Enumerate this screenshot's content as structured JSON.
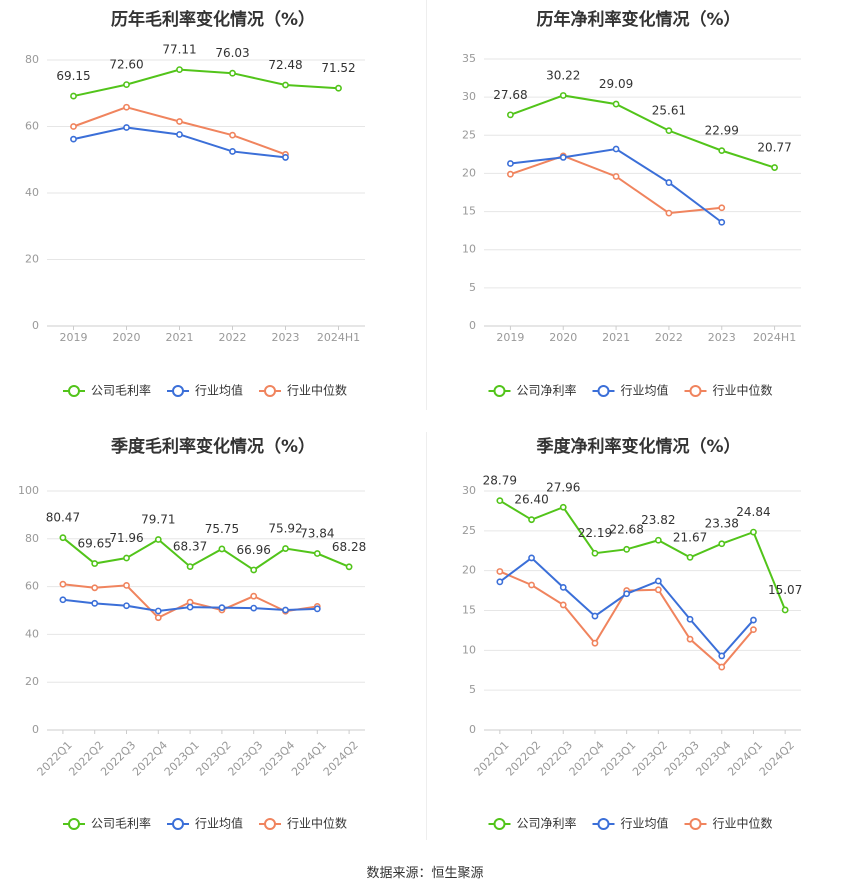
{
  "colors": {
    "company": "#52c41a",
    "industry_avg": "#3b6fd8",
    "industry_median": "#f0845e",
    "grid": "#e6e6e6",
    "axis_text": "#999999",
    "title": "#333333",
    "label": "#333333"
  },
  "legend": {
    "gross": [
      "公司毛利率",
      "行业均值",
      "行业中位数"
    ],
    "net": [
      "公司净利率",
      "行业均值",
      "行业中位数"
    ]
  },
  "source_text": "数据来源：恒生聚源",
  "chart_data": [
    {
      "type": "line",
      "title": "历年毛利率变化情况（%）",
      "categories": [
        "2019",
        "2020",
        "2021",
        "2022",
        "2023",
        "2024H1"
      ],
      "ylim": [
        0,
        80
      ],
      "yticks": [
        0,
        20,
        40,
        60,
        80
      ],
      "grid": true,
      "legend_position": "bottom",
      "series": [
        {
          "name": "公司毛利率",
          "values": [
            69.15,
            72.6,
            77.11,
            76.03,
            72.48,
            71.52
          ],
          "labels": [
            "69.15",
            "72.60",
            "77.11",
            "76.03",
            "72.48",
            "71.52"
          ]
        },
        {
          "name": "行业均值",
          "values": [
            56.2,
            59.7,
            57.6,
            52.5,
            50.7,
            null
          ]
        },
        {
          "name": "行业中位数",
          "values": [
            60.0,
            65.8,
            61.5,
            57.4,
            51.6,
            null
          ]
        }
      ]
    },
    {
      "type": "line",
      "title": "历年净利率变化情况（%）",
      "categories": [
        "2019",
        "2020",
        "2021",
        "2022",
        "2023",
        "2024H1"
      ],
      "ylim": [
        0,
        35
      ],
      "yticks": [
        0,
        5,
        10,
        15,
        20,
        25,
        30,
        35
      ],
      "grid": true,
      "legend_position": "bottom",
      "series": [
        {
          "name": "公司净利率",
          "values": [
            27.68,
            30.22,
            29.09,
            25.61,
            22.99,
            20.77
          ],
          "labels": [
            "27.68",
            "30.22",
            "29.09",
            "25.61",
            "22.99",
            "20.77"
          ]
        },
        {
          "name": "行业均值",
          "values": [
            21.3,
            22.1,
            23.2,
            18.8,
            13.6,
            null
          ]
        },
        {
          "name": "行业中位数",
          "values": [
            19.9,
            22.3,
            19.6,
            14.8,
            15.5,
            null
          ]
        }
      ]
    },
    {
      "type": "line",
      "title": "季度毛利率变化情况（%）",
      "categories": [
        "2022Q1",
        "2022Q2",
        "2022Q3",
        "2022Q4",
        "2023Q1",
        "2023Q2",
        "2023Q3",
        "2023Q4",
        "2024Q1",
        "2024Q2"
      ],
      "ylim": [
        0,
        100
      ],
      "yticks": [
        0,
        20,
        40,
        60,
        80,
        100
      ],
      "grid": true,
      "legend_position": "bottom",
      "series": [
        {
          "name": "公司毛利率",
          "values": [
            80.47,
            69.65,
            71.96,
            79.71,
            68.37,
            75.75,
            66.96,
            75.92,
            73.84,
            68.28
          ],
          "labels": [
            "80.47",
            "69.65",
            "71.96",
            "79.71",
            "68.37",
            "75.75",
            "66.96",
            "75.92",
            "73.84",
            "68.28"
          ]
        },
        {
          "name": "行业均值",
          "values": [
            54.5,
            53.0,
            52.0,
            49.8,
            51.4,
            51.2,
            51.0,
            50.2,
            50.7,
            null
          ]
        },
        {
          "name": "行业中位数",
          "values": [
            61.0,
            59.5,
            60.5,
            47.0,
            53.5,
            50.2,
            56.0,
            49.7,
            51.7,
            null
          ]
        }
      ]
    },
    {
      "type": "line",
      "title": "季度净利率变化情况（%）",
      "categories": [
        "2022Q1",
        "2022Q2",
        "2022Q3",
        "2022Q4",
        "2023Q1",
        "2023Q2",
        "2023Q3",
        "2023Q4",
        "2024Q1",
        "2024Q2"
      ],
      "ylim": [
        0,
        30
      ],
      "yticks": [
        0,
        5,
        10,
        15,
        20,
        25,
        30
      ],
      "grid": true,
      "legend_position": "bottom",
      "series": [
        {
          "name": "公司净利率",
          "values": [
            28.79,
            26.4,
            27.96,
            22.19,
            22.68,
            23.82,
            21.67,
            23.38,
            24.84,
            15.07
          ],
          "labels": [
            "28.79",
            "26.40",
            "27.96",
            "22.19",
            "22.68",
            "23.82",
            "21.67",
            "23.38",
            "24.84",
            "15.07"
          ]
        },
        {
          "name": "行业均值",
          "values": [
            18.6,
            21.6,
            17.9,
            14.3,
            17.1,
            18.7,
            13.9,
            9.3,
            13.8,
            null
          ]
        },
        {
          "name": "行业中位数",
          "values": [
            19.9,
            18.2,
            15.7,
            10.9,
            17.5,
            17.6,
            11.4,
            7.9,
            12.6,
            null
          ]
        }
      ]
    }
  ]
}
